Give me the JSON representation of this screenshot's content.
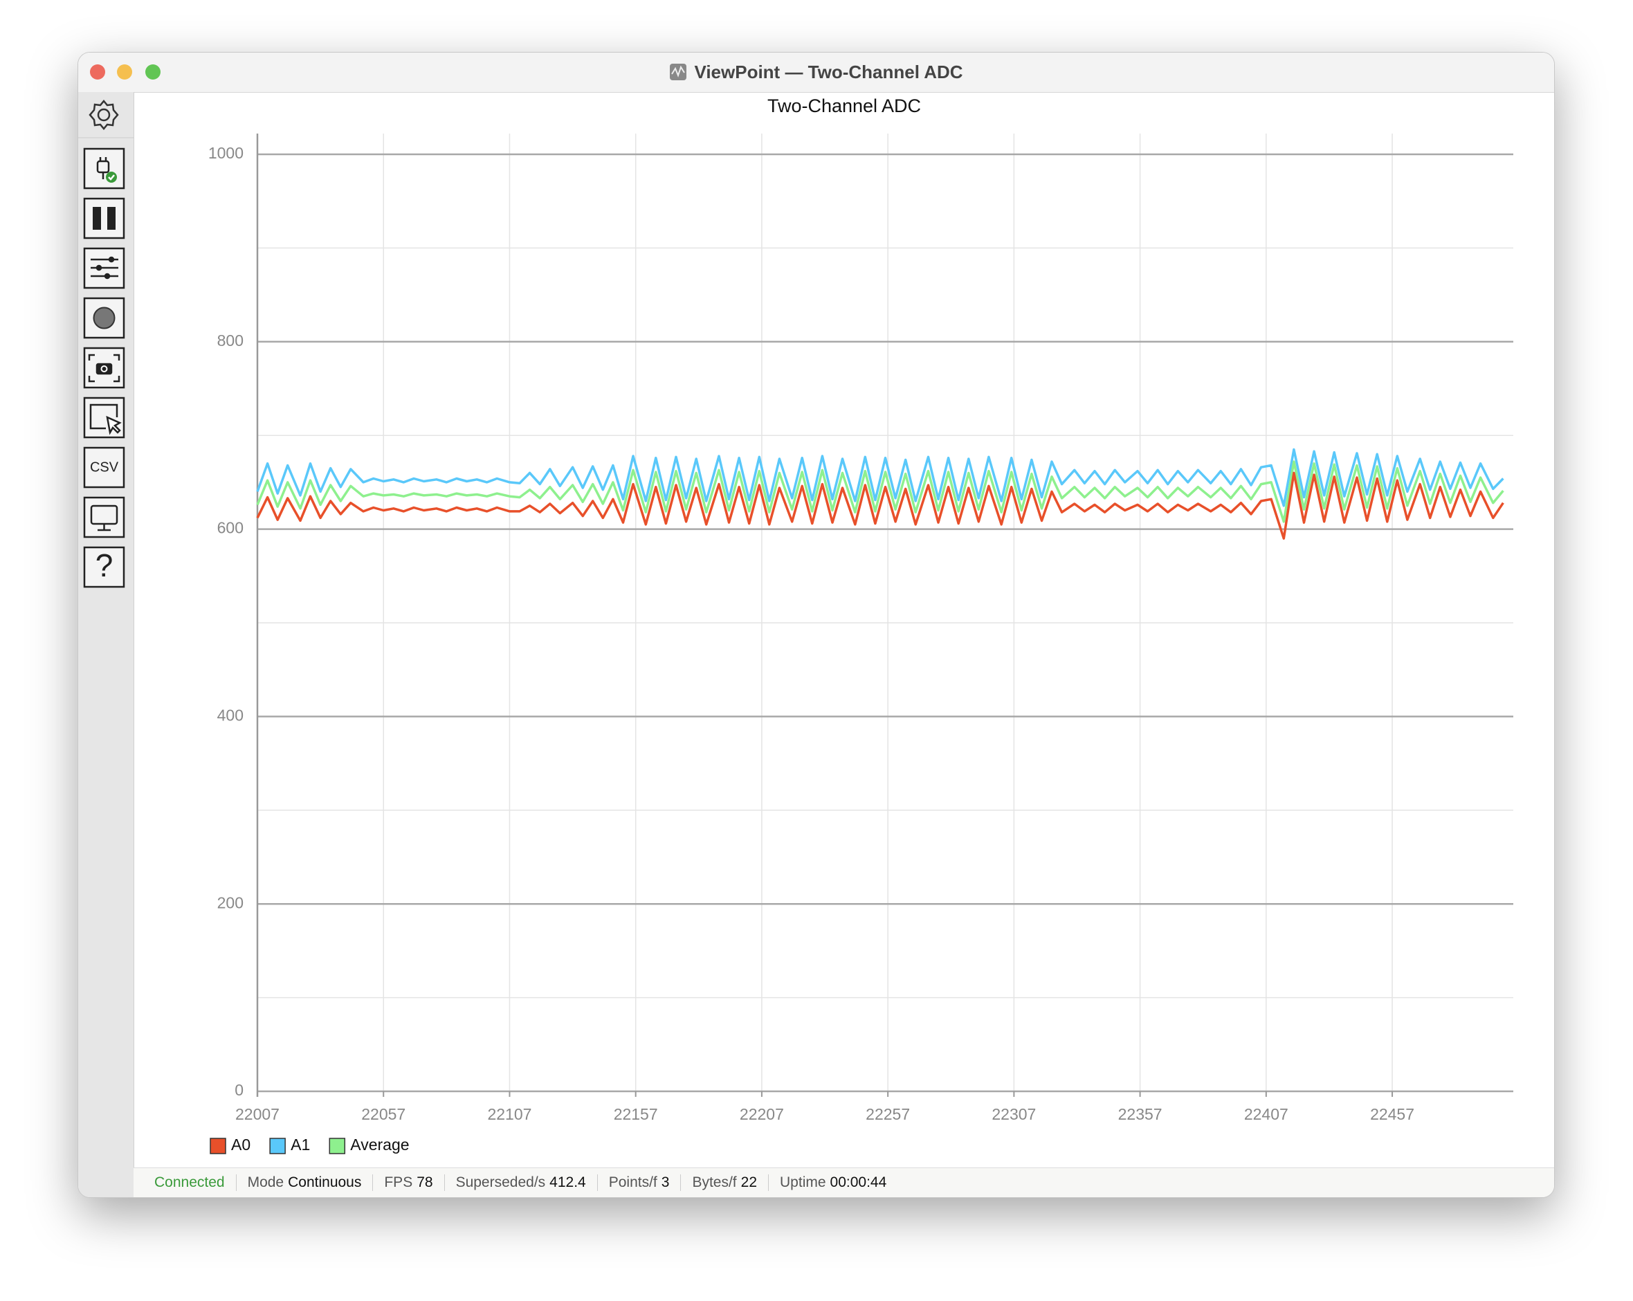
{
  "window": {
    "title": "ViewPoint — Two-Channel ADC"
  },
  "sidebar": {
    "csv_label": "CSV",
    "help_label": "?"
  },
  "chart_data": {
    "type": "line",
    "title": "Two-Channel ADC",
    "x": [
      22007,
      22011,
      22015,
      22019,
      22024,
      22028,
      22032,
      22036,
      22040,
      22044,
      22049,
      22053,
      22057,
      22061,
      22065,
      22069,
      22073,
      22078,
      22082,
      22086,
      22090,
      22094,
      22098,
      22102,
      22107,
      22111,
      22115,
      22119,
      22123,
      22127,
      22132,
      22136,
      22140,
      22144,
      22148,
      22152,
      22156,
      22161,
      22165,
      22169,
      22173,
      22177,
      22181,
      22185,
      22190,
      22194,
      22198,
      22202,
      22206,
      22210,
      22214,
      22219,
      22223,
      22227,
      22231,
      22235,
      22239,
      22244,
      22248,
      22252,
      22256,
      22260,
      22264,
      22268,
      22273,
      22277,
      22281,
      22285,
      22289,
      22293,
      22297,
      22302,
      22306,
      22310,
      22314,
      22318,
      22322,
      22326,
      22331,
      22335,
      22339,
      22343,
      22347,
      22351,
      22356,
      22360,
      22364,
      22368,
      22372,
      22376,
      22380,
      22385,
      22389,
      22393,
      22397,
      22401,
      22405,
      22409,
      22414,
      22418,
      22422,
      22426,
      22430,
      22434,
      22438,
      22443,
      22447,
      22451,
      22455,
      22459,
      22463,
      22468,
      22472,
      22476,
      22480,
      22484,
      22488,
      22492,
      22497,
      22501
    ],
    "series": [
      {
        "name": "A0",
        "color": "#e8502a",
        "values": [
          612,
          634,
          610,
          633,
          609,
          635,
          612,
          630,
          616,
          628,
          619,
          623,
          620,
          622,
          619,
          623,
          620,
          622,
          619,
          623,
          620,
          622,
          619,
          623,
          619,
          619,
          625,
          618,
          627,
          617,
          628,
          614,
          630,
          612,
          632,
          607,
          648,
          605,
          645,
          606,
          647,
          608,
          644,
          605,
          648,
          607,
          645,
          606,
          647,
          605,
          644,
          608,
          646,
          606,
          648,
          607,
          644,
          605,
          647,
          606,
          645,
          608,
          643,
          605,
          647,
          607,
          645,
          606,
          644,
          608,
          646,
          605,
          645,
          607,
          643,
          609,
          640,
          618,
          627,
          619,
          626,
          618,
          627,
          620,
          626,
          619,
          627,
          618,
          626,
          620,
          627,
          619,
          626,
          618,
          628,
          616,
          630,
          632,
          590,
          660,
          607,
          658,
          608,
          656,
          607,
          655,
          609,
          654,
          608,
          652,
          610,
          648,
          612,
          645,
          613,
          642,
          614,
          640,
          612,
          628
        ]
      },
      {
        "name": "A1",
        "color": "#5ac8fa",
        "values": [
          640,
          670,
          638,
          668,
          636,
          670,
          640,
          665,
          645,
          664,
          650,
          654,
          651,
          653,
          650,
          654,
          651,
          653,
          650,
          654,
          651,
          653,
          650,
          654,
          650,
          649,
          660,
          648,
          664,
          646,
          666,
          644,
          667,
          642,
          668,
          632,
          678,
          630,
          676,
          631,
          677,
          633,
          675,
          630,
          678,
          632,
          676,
          631,
          677,
          630,
          675,
          633,
          676,
          631,
          678,
          632,
          675,
          630,
          677,
          631,
          676,
          633,
          674,
          630,
          677,
          632,
          676,
          631,
          675,
          633,
          677,
          630,
          676,
          632,
          674,
          634,
          672,
          648,
          663,
          649,
          662,
          648,
          663,
          650,
          662,
          649,
          663,
          648,
          662,
          650,
          663,
          649,
          662,
          648,
          664,
          647,
          666,
          668,
          625,
          685,
          634,
          683,
          636,
          682,
          635,
          681,
          637,
          680,
          636,
          678,
          640,
          675,
          642,
          672,
          643,
          671,
          644,
          670,
          643,
          654
        ]
      },
      {
        "name": "Average",
        "color": "#8ef08e",
        "values": [
          626,
          652,
          624,
          650,
          622,
          652,
          626,
          647,
          630,
          646,
          635,
          638,
          636,
          637,
          635,
          638,
          636,
          637,
          635,
          638,
          636,
          637,
          635,
          638,
          635,
          634,
          642,
          633,
          645,
          632,
          647,
          629,
          648,
          627,
          650,
          620,
          663,
          618,
          661,
          619,
          662,
          621,
          660,
          618,
          663,
          620,
          661,
          619,
          662,
          618,
          660,
          621,
          661,
          619,
          663,
          620,
          660,
          618,
          662,
          619,
          661,
          621,
          659,
          618,
          662,
          620,
          661,
          619,
          660,
          621,
          662,
          618,
          661,
          620,
          659,
          622,
          656,
          633,
          645,
          634,
          644,
          633,
          645,
          635,
          644,
          634,
          645,
          633,
          644,
          635,
          645,
          634,
          644,
          633,
          646,
          632,
          648,
          650,
          608,
          672,
          621,
          670,
          622,
          669,
          621,
          668,
          623,
          667,
          622,
          665,
          625,
          662,
          627,
          659,
          628,
          657,
          629,
          655,
          628,
          641
        ]
      }
    ],
    "xlim": [
      22007,
      22505
    ],
    "xticks": [
      22007,
      22057,
      22107,
      22157,
      22207,
      22257,
      22307,
      22357,
      22407,
      22457
    ],
    "ylim": [
      0,
      1000
    ],
    "yticks": [
      0,
      200,
      400,
      600,
      800,
      1000
    ],
    "yminorticks": [
      100,
      300,
      500,
      700,
      900
    ],
    "grid": true,
    "legend": "bottom-left"
  },
  "status_bar": {
    "connection": "Connected",
    "items": [
      {
        "label": "Mode",
        "value": "Continuous"
      },
      {
        "label": "FPS",
        "value": "78"
      },
      {
        "label": "Superseded/s",
        "value": "412.4"
      },
      {
        "label": "Points/f",
        "value": "3"
      },
      {
        "label": "Bytes/f",
        "value": "22"
      },
      {
        "label": "Uptime",
        "value": "00:00:44"
      }
    ]
  }
}
